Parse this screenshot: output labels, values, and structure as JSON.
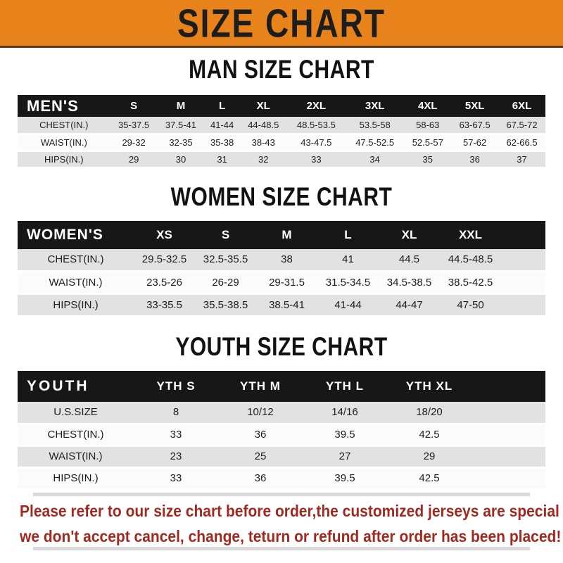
{
  "banner": {
    "title": "SIZE CHART",
    "bg_color": "#E8821B",
    "text_color": "#1d1d1d"
  },
  "sections": [
    {
      "title": "MAN SIZE CHART",
      "header_label": "MEN'S",
      "columns": [
        "S",
        "M",
        "L",
        "XL",
        "2XL",
        "3XL",
        "4XL",
        "5XL",
        "6XL"
      ],
      "rows": [
        {
          "label": "CHEST(IN.)",
          "values": [
            "35-37.5",
            "37.5-41",
            "41-44",
            "44-48.5",
            "48.5-53.5",
            "53.5-58",
            "58-63",
            "63-67.5",
            "67.5-72"
          ]
        },
        {
          "label": "WAIST(IN.)",
          "values": [
            "29-32",
            "32-35",
            "35-38",
            "38-43",
            "43-47.5",
            "47.5-52.5",
            "52.5-57",
            "57-62",
            "62-66.5"
          ]
        },
        {
          "label": "HIPS(IN.)",
          "values": [
            "29",
            "30",
            "31",
            "32",
            "33",
            "34",
            "35",
            "36",
            "37"
          ]
        }
      ]
    },
    {
      "title": "WOMEN SIZE CHART",
      "header_label": "WOMEN'S",
      "columns": [
        "XS",
        "S",
        "M",
        "L",
        "XL",
        "XXL"
      ],
      "rows": [
        {
          "label": "CHEST(IN.)",
          "values": [
            "29.5-32.5",
            "32.5-35.5",
            "38",
            "41",
            "44.5",
            "44.5-48.5"
          ]
        },
        {
          "label": "WAIST(IN.)",
          "values": [
            "23.5-26",
            "26-29",
            "29-31.5",
            "31.5-34.5",
            "34.5-38.5",
            "38.5-42.5"
          ]
        },
        {
          "label": "HIPS(IN.)",
          "values": [
            "33-35.5",
            "35.5-38.5",
            "38.5-41",
            "41-44",
            "44-47",
            "47-50"
          ]
        }
      ]
    },
    {
      "title": "YOUTH SIZE CHART",
      "header_label": "YOUTH",
      "columns": [
        "YTH S",
        "YTH M",
        "YTH L",
        "YTH XL"
      ],
      "rows": [
        {
          "label": "U.S.SIZE",
          "values": [
            "8",
            "10/12",
            "14/16",
            "18/20"
          ]
        },
        {
          "label": "CHEST(IN.)",
          "values": [
            "33",
            "36",
            "39.5",
            "42.5"
          ]
        },
        {
          "label": "WAIST(IN.)",
          "values": [
            "23",
            "25",
            "27",
            "29"
          ]
        },
        {
          "label": "HIPS(IN.)",
          "values": [
            "33",
            "36",
            "39.5",
            "42.5"
          ]
        }
      ]
    }
  ],
  "disclaimer": {
    "line1": "Please refer to our size chart before order,the customized jerseys are special products,",
    "line2": "we don't accept cancel, change, teturn or refund after order has been placed!",
    "color": "#A02920"
  }
}
